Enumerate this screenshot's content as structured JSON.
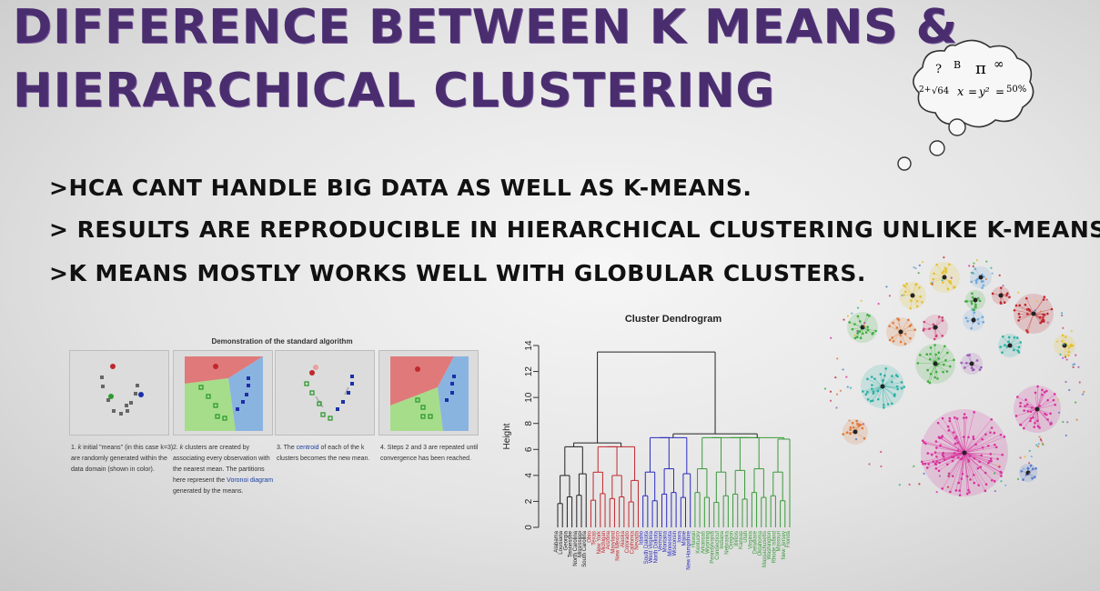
{
  "slide": {
    "title_line1": "DIFFERENCE BETWEEN K MEANS &",
    "title_line2": "HIERARCHICAL CLUSTERING",
    "bullets": [
      ">HCA CANT HANDLE BIG DATA AS WELL AS K-MEANS.",
      "> RESULTS ARE REPRODUCIBLE IN HIERARCHICAL CLUSTERING UNLIKE K-MEANS.",
      ">K MEANS MOSTLY WORKS WELL WITH GLOBULAR CLUSTERS."
    ]
  },
  "kmeans_demo": {
    "title": "Demonstration of the standard algorithm",
    "steps": [
      {
        "pre": "1. ",
        "em": "k",
        "mid": " initial \"means\" (in this case k=3) are randomly generated within the data domain (shown in color).",
        "link": "",
        "post": ""
      },
      {
        "pre": "2. ",
        "em": "k",
        "mid": " clusters are created by associating every observation with the nearest mean. The partitions here represent the ",
        "link": "Voronoi diagram",
        "post": " generated by the means."
      },
      {
        "pre": "3. The ",
        "em": "",
        "mid": "",
        "link": "centroid",
        "post": " of each of the k clusters becomes the new mean."
      },
      {
        "pre": "4. Steps 2 and 3 are repeated until convergence has been reached.",
        "em": "",
        "mid": "",
        "link": "",
        "post": ""
      }
    ],
    "colors": {
      "red": "#c0282d",
      "green": "#2e9a2e",
      "blue": "#1d2fa8",
      "gray": "#666666"
    }
  },
  "chart_data": {
    "type": "dendrogram",
    "title": "Cluster Dendrogram",
    "ylabel": "Height",
    "ylim": [
      0,
      14
    ],
    "yticks": [
      0,
      2,
      4,
      6,
      8,
      10,
      12,
      14
    ],
    "root_height": 13.5,
    "groups": [
      {
        "color": "#222222",
        "merge_height": 6.5,
        "leaves": [
          "Alabama",
          "Louisiana",
          "Georgia",
          "Tennessee",
          "North Carolina",
          "Mississippi",
          "South Carolina"
        ]
      },
      {
        "color": "#c0282d",
        "merge_height": 6.5,
        "leaves": [
          "Ohio",
          "Texas",
          "New York",
          "Michigan",
          "Arizona",
          "Maryland",
          "New Mexico",
          "Alaska",
          "Colorado",
          "California",
          "Nevada"
        ]
      },
      {
        "color": "#2b2bc0",
        "merge_height": 7.2,
        "leaves": [
          "Idaho",
          "South Dakota",
          "West Virginia",
          "North Dakota",
          "Vermont",
          "Montana",
          "Minnesota",
          "Wisconsin",
          "Iowa",
          "Maine",
          "New Hampshire"
        ]
      },
      {
        "color": "#3a9a3a",
        "merge_height": 7.2,
        "leaves": [
          "Hawaii",
          "Kentucky",
          "Arkansas",
          "Wyoming",
          "Pennsylvania",
          "Connecticut",
          "Indiana",
          "Nebraska",
          "Oregon",
          "Illinois",
          "Kansas",
          "Utah",
          "Virginia",
          "Delaware",
          "Oklahoma",
          "Massachusetts",
          "Washington",
          "Rhode Island",
          "Missouri",
          "New Jersey",
          "Florida"
        ]
      }
    ]
  },
  "decor": {
    "thought_cloud_text": [
      "?",
      "B",
      "π",
      "∞",
      "2+",
      "√64",
      "x",
      "=",
      "y²",
      "=",
      "50%"
    ],
    "network_colors": [
      "#d8329e",
      "#c0282d",
      "#2bb0a6",
      "#3fae3f",
      "#6fa8dc",
      "#e07b39",
      "#9b59b6",
      "#e6c12e",
      "#5577cc",
      "#cc4477"
    ]
  }
}
